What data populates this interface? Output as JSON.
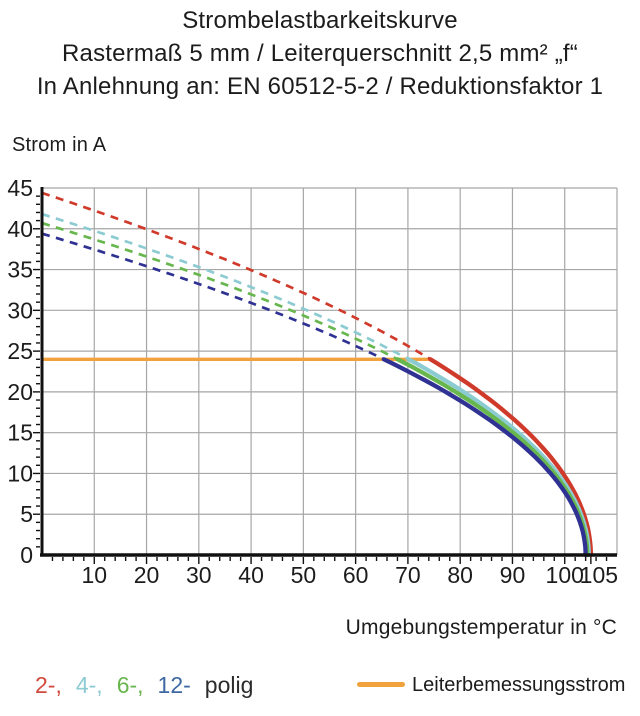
{
  "chart_data": {
    "type": "line",
    "title_lines": [
      "Strombelastbarkeitskurve",
      "Rastermaß 5 mm / Leiterquerschnitt 2,5 mm² „f“",
      "In Anlehnung an: EN 60512-5-2 / Reduktionsfaktor 1"
    ],
    "ylabel": "Strom in A",
    "xlabel": "Umgebungstemperatur in °C",
    "xlim": [
      0,
      110
    ],
    "ylim": [
      0,
      45
    ],
    "x_ticks": [
      10,
      20,
      30,
      40,
      50,
      60,
      70,
      80,
      90,
      100,
      105
    ],
    "y_ticks": [
      0,
      5,
      10,
      15,
      20,
      25,
      30,
      35,
      40,
      45
    ],
    "x_minor_step": 2,
    "y_minor_step": 1,
    "grid": true,
    "grid_color": "#a6a6a6",
    "axis_color": "#111111",
    "rated_current": {
      "value": 24,
      "label": "Leiterbemessungsstrom",
      "color": "#F2A23C"
    },
    "series_note": "dashed above rated current (24 A), solid below; I(T) = i0 * sqrt(1 - T/t_end)",
    "series": [
      {
        "name": "2-polig",
        "color": "#D03A2B",
        "i0": 44.4,
        "t_end": 105.0,
        "points": [
          [
            0,
            44.4
          ],
          [
            10,
            42.2
          ],
          [
            20,
            40.0
          ],
          [
            30,
            37.6
          ],
          [
            40,
            35.1
          ],
          [
            50,
            32.3
          ],
          [
            60,
            29.2
          ],
          [
            70,
            25.7
          ],
          [
            74.3,
            24.0
          ],
          [
            80,
            21.7
          ],
          [
            90,
            16.8
          ],
          [
            100,
            9.7
          ],
          [
            105,
            0
          ]
        ]
      },
      {
        "name": "4-polig",
        "color": "#8CCBD1",
        "i0": 41.8,
        "t_end": 104.6,
        "points": [
          [
            0,
            41.8
          ],
          [
            10,
            39.8
          ],
          [
            20,
            37.7
          ],
          [
            30,
            35.5
          ],
          [
            40,
            33.0
          ],
          [
            50,
            30.3
          ],
          [
            60,
            27.2
          ],
          [
            70.1,
            24.0
          ],
          [
            80,
            20.4
          ],
          [
            90,
            15.5
          ],
          [
            100,
            8.7
          ],
          [
            104.6,
            0
          ]
        ]
      },
      {
        "name": "6-polig",
        "color": "#67B64E",
        "i0": 40.7,
        "t_end": 104.3,
        "points": [
          [
            0,
            40.7
          ],
          [
            10,
            38.7
          ],
          [
            20,
            36.6
          ],
          [
            30,
            34.4
          ],
          [
            40,
            32.0
          ],
          [
            50,
            29.4
          ],
          [
            60,
            26.4
          ],
          [
            68.0,
            24.0
          ],
          [
            70,
            23.2
          ],
          [
            80,
            19.6
          ],
          [
            90,
            14.8
          ],
          [
            100,
            8.0
          ],
          [
            104.3,
            0
          ]
        ]
      },
      {
        "name": "12-polig",
        "color": "#2F3193",
        "i0": 39.4,
        "t_end": 104.0,
        "points": [
          [
            0,
            39.4
          ],
          [
            10,
            37.5
          ],
          [
            20,
            35.4
          ],
          [
            30,
            33.2
          ],
          [
            40,
            30.9
          ],
          [
            50,
            28.3
          ],
          [
            60,
            25.5
          ],
          [
            65.4,
            24.0
          ],
          [
            70,
            22.3
          ],
          [
            80,
            18.8
          ],
          [
            90,
            14.1
          ],
          [
            100,
            7.4
          ],
          [
            104,
            0
          ]
        ]
      }
    ],
    "legend": {
      "poles": [
        {
          "label": "2-,",
          "color": "#D04A3B"
        },
        {
          "label": "4-,",
          "color": "#8CCBD1"
        },
        {
          "label": "6-,",
          "color": "#67B64E"
        },
        {
          "label": "12-",
          "color": "#3D68A2"
        }
      ],
      "suffix": "polig"
    }
  }
}
